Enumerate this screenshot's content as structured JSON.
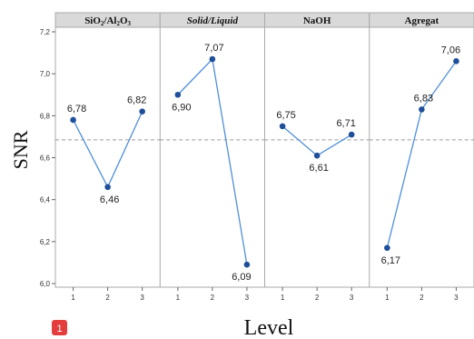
{
  "chart_data": {
    "type": "line",
    "xlabel": "Level",
    "ylabel": "SNR",
    "ylim": [
      6.0,
      7.2
    ],
    "yticks": [
      "6,0",
      "6,2",
      "6,4",
      "6,6",
      "6,8",
      "7,0",
      "7,2"
    ],
    "ytick_values": [
      6.0,
      6.2,
      6.4,
      6.6,
      6.8,
      7.0,
      7.2
    ],
    "reference_line": 6.685,
    "grid": false,
    "colors": {
      "line": "#4f8fd8",
      "marker": "#1f4f9a",
      "reference": "#999999",
      "panel_header": "#d9d9d9",
      "badge": "#e33d3d"
    },
    "panels": [
      {
        "title_prefix": "SiO",
        "sub1": "2",
        "title_mid": "/Al",
        "sub2": "2",
        "title_suffix": "O",
        "sub3": "3",
        "italic": false,
        "categories": [
          "1",
          "2",
          "3"
        ],
        "values": [
          6.78,
          6.46,
          6.82
        ],
        "labels": [
          "6,78",
          "6,46",
          "6,82"
        ]
      },
      {
        "title_prefix": "Solid/Liquid",
        "italic": true,
        "categories": [
          "1",
          "2",
          "3"
        ],
        "values": [
          6.9,
          7.07,
          6.09
        ],
        "labels": [
          "6,90",
          "7,07",
          "6,09"
        ]
      },
      {
        "title_prefix": "NaOH",
        "italic": false,
        "categories": [
          "1",
          "2",
          "3"
        ],
        "values": [
          6.75,
          6.61,
          6.71
        ],
        "labels": [
          "6,75",
          "6,61",
          "6,71"
        ]
      },
      {
        "title_prefix": "Agregat",
        "italic": false,
        "categories": [
          "1",
          "2",
          "3"
        ],
        "values": [
          6.17,
          6.83,
          7.06
        ],
        "labels": [
          "6,17",
          "6,83",
          "7,06"
        ]
      }
    ]
  },
  "badge": {
    "text": "1"
  }
}
